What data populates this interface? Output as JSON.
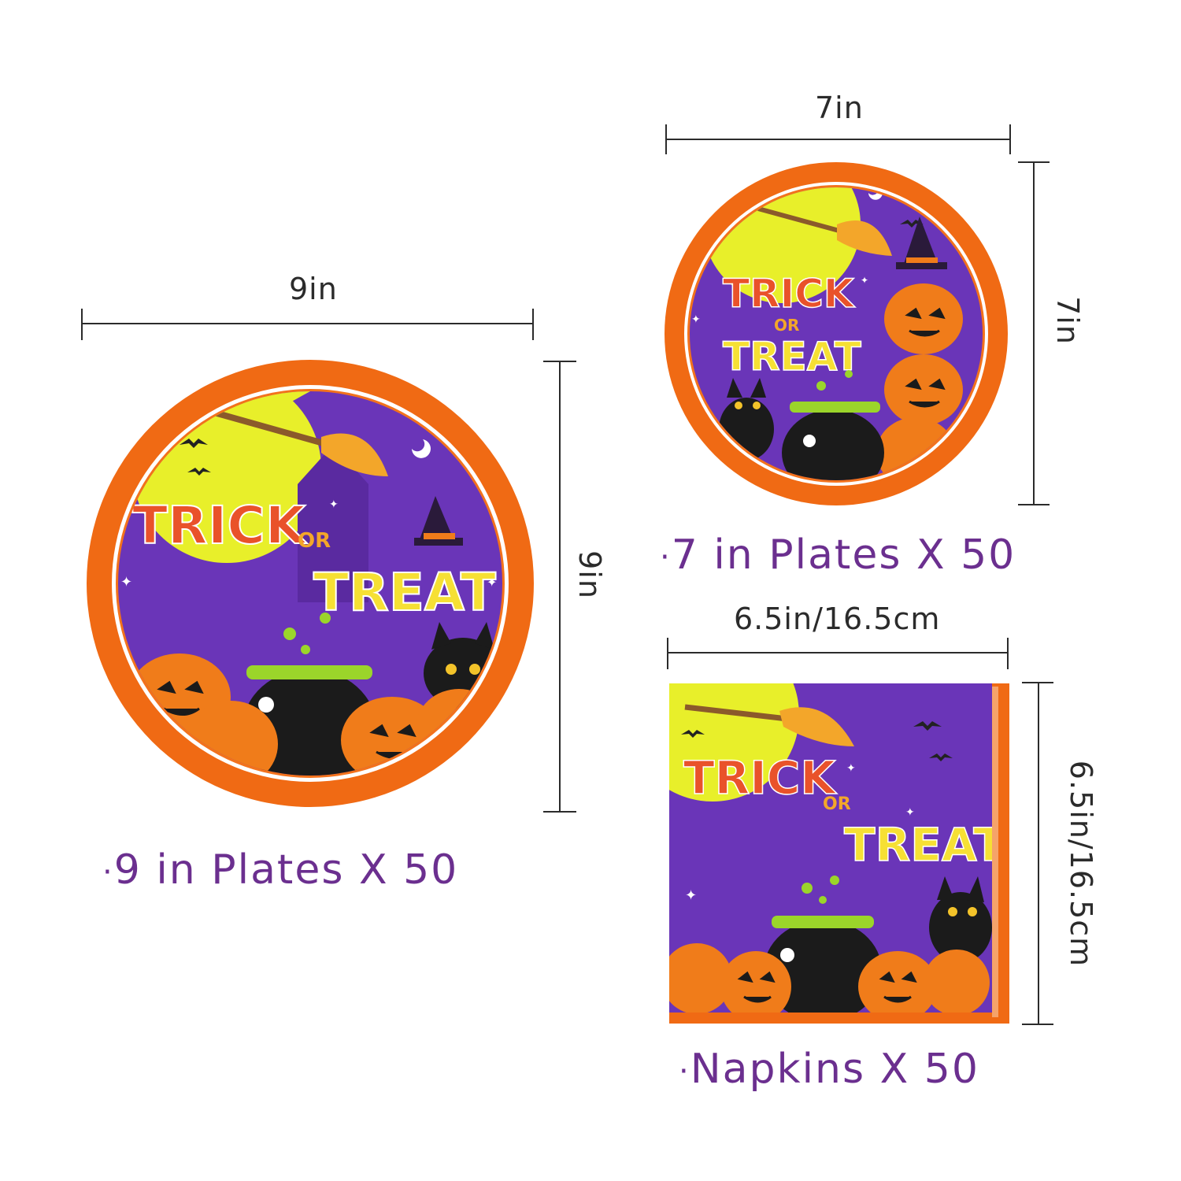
{
  "large_plate": {
    "width_label": "9in",
    "height_label": "9in",
    "caption_bullet": "·",
    "caption": "9 in Plates  X 50",
    "art_text": {
      "line1": "TRICK",
      "or": "OR",
      "line2": "TREAT"
    }
  },
  "small_plate": {
    "width_label": "7in",
    "height_label": "7in",
    "caption_bullet": "·",
    "caption": "7 in Plates  X 50",
    "art_text": {
      "line1": "TRICK",
      "or": "OR",
      "line2": "TREAT"
    }
  },
  "napkin": {
    "width_label": "6.5in/16.5cm",
    "height_label": "6.5in/16.5cm",
    "caption_bullet": "·",
    "caption": "Napkins  X 50",
    "art_text": {
      "line1": "TRICK",
      "or": "OR",
      "line2": "TREAT"
    }
  },
  "colors": {
    "purple": "#6a35b8",
    "orange_rim": "#f06a14",
    "moon_yellow": "#e8ef2a",
    "caption_purple": "#6b2f8f",
    "pumpkin": "#f07c1a",
    "cauldron": "#1b1b1b",
    "slime_green": "#9bd52a"
  },
  "icons": [
    "pumpkin-icon",
    "cauldron-icon",
    "cat-icon",
    "broom-icon",
    "bat-icon",
    "moon-icon",
    "witch-hat-icon",
    "star-icon"
  ]
}
